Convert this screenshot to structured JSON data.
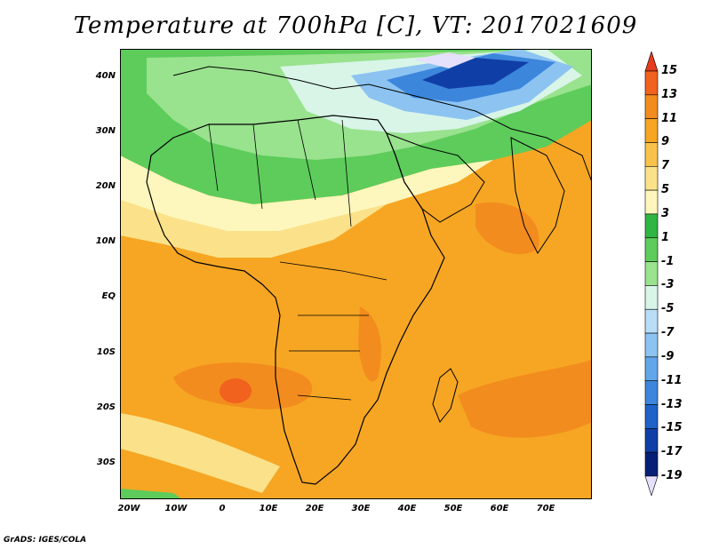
{
  "title": "Temperature at 700hPa [C], VT: 2017021609",
  "credit": "GrADS: IGES/COLA",
  "map": {
    "lat_labels": [
      "40N",
      "30N",
      "20N",
      "10N",
      "EQ",
      "10S",
      "20S",
      "30S"
    ],
    "lon_labels": [
      "20W",
      "10W",
      "0",
      "10E",
      "20E",
      "30E",
      "40E",
      "50E",
      "60E",
      "70E"
    ]
  },
  "colorbar": {
    "labels": [
      "15",
      "13",
      "11",
      "9",
      "7",
      "5",
      "3",
      "1",
      "-1",
      "-3",
      "-5",
      "-7",
      "-9",
      "-11",
      "-13",
      "-15",
      "-17",
      "-19"
    ],
    "colors": [
      "#e63b1d",
      "#f0621d",
      "#f38c1e",
      "#f6a623",
      "#f9c34b",
      "#fbe28a",
      "#fdf7bd",
      "#2fb543",
      "#5dcc5b",
      "#99e28e",
      "#d8f5e8",
      "#b8ddf7",
      "#8cc3f1",
      "#62a6ea",
      "#3c86dc",
      "#1f63c9",
      "#0f3fa6",
      "#081f76",
      "#e5e0fb"
    ]
  }
}
